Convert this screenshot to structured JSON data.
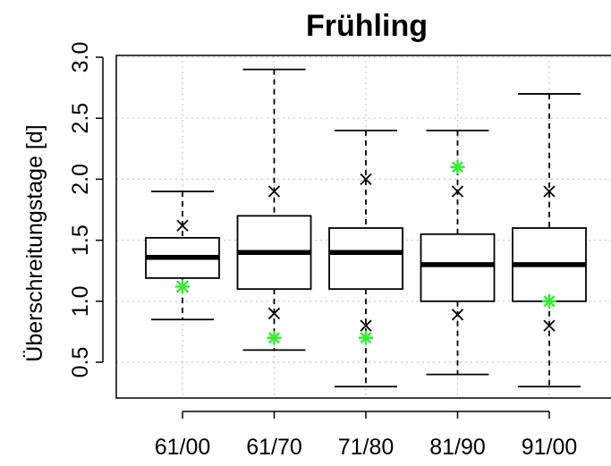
{
  "chart_data": {
    "type": "boxplot",
    "title": "Frühling",
    "xlabel": "",
    "ylabel": "Überschreitungstage [d]",
    "ylim": [
      0.2,
      3.05
    ],
    "yticks": [
      0.5,
      1.0,
      1.5,
      2.0,
      2.5,
      3.0
    ],
    "ytick_labels": [
      "0.5",
      "1.0",
      "1.5",
      "2.0",
      "2.5",
      "3.0"
    ],
    "grid": true,
    "categories": [
      "61/00",
      "61/70",
      "71/80",
      "81/90",
      "91/00"
    ],
    "boxes": [
      {
        "whisker_low": 0.85,
        "q1": 1.19,
        "median": 1.36,
        "q3": 1.52,
        "whisker_high": 1.9,
        "marker_x": [
          1.62,
          1.12
        ],
        "marker_star": 1.12
      },
      {
        "whisker_low": 0.6,
        "q1": 1.1,
        "median": 1.4,
        "q3": 1.7,
        "whisker_high": 2.9,
        "marker_x": [
          1.9,
          0.9
        ],
        "marker_star": 0.7
      },
      {
        "whisker_low": 0.3,
        "q1": 1.1,
        "median": 1.4,
        "q3": 1.6,
        "whisker_high": 2.4,
        "marker_x": [
          2.0,
          0.8
        ],
        "marker_star": 0.7
      },
      {
        "whisker_low": 0.4,
        "q1": 1.0,
        "median": 1.3,
        "q3": 1.55,
        "whisker_high": 2.4,
        "marker_x": [
          1.9,
          0.89
        ],
        "marker_star": 2.1
      },
      {
        "whisker_low": 0.3,
        "q1": 1.0,
        "median": 1.3,
        "q3": 1.6,
        "whisker_high": 2.7,
        "marker_x": [
          1.9,
          0.8
        ],
        "marker_star": 1.0
      }
    ],
    "colors": {
      "box": "#000000",
      "marker_x": "#000000",
      "marker_star": "#33ee33",
      "grid": "#c8c8c8"
    }
  }
}
